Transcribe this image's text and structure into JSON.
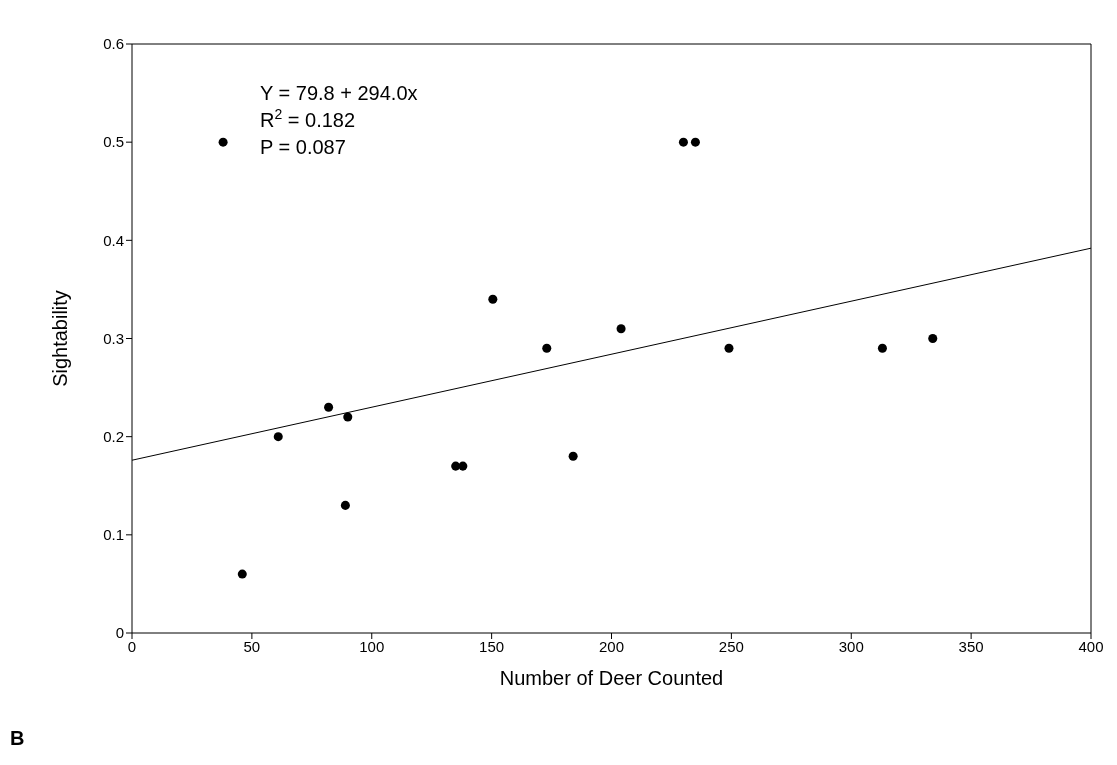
{
  "chart_data": {
    "type": "scatter",
    "xlabel": "Number of Deer Counted",
    "ylabel": "Sightability",
    "xlim": [
      0,
      400
    ],
    "xticks": [
      0,
      50,
      100,
      150,
      200,
      250,
      300,
      350,
      400
    ],
    "ylim": [
      0,
      0.6
    ],
    "yticks": [
      0,
      0.1,
      0.2,
      0.3,
      0.4,
      0.5,
      0.6
    ],
    "grid": false,
    "series": [
      {
        "marker": "circle",
        "color": "#000000",
        "x": [
          38,
          46,
          61,
          82,
          90,
          89,
          135,
          138,
          150.5,
          173,
          184,
          204,
          230,
          235,
          249,
          313,
          334
        ],
        "values": [
          0.5,
          0.06,
          0.2,
          0.23,
          0.22,
          0.13,
          0.17,
          0.17,
          0.34,
          0.29,
          0.18,
          0.31,
          0.5,
          0.5,
          0.29,
          0.29,
          0.3
        ]
      },
      {
        "type": "line",
        "marker": "none",
        "color": "#000000",
        "x": [
          0,
          400
        ],
        "values": [
          0.176,
          0.392
        ]
      }
    ],
    "annotations": [
      "Y = 79.8 + 294.0x",
      "R$^{2}$ = 0.182",
      "P = 0.087",
      "B"
    ]
  }
}
